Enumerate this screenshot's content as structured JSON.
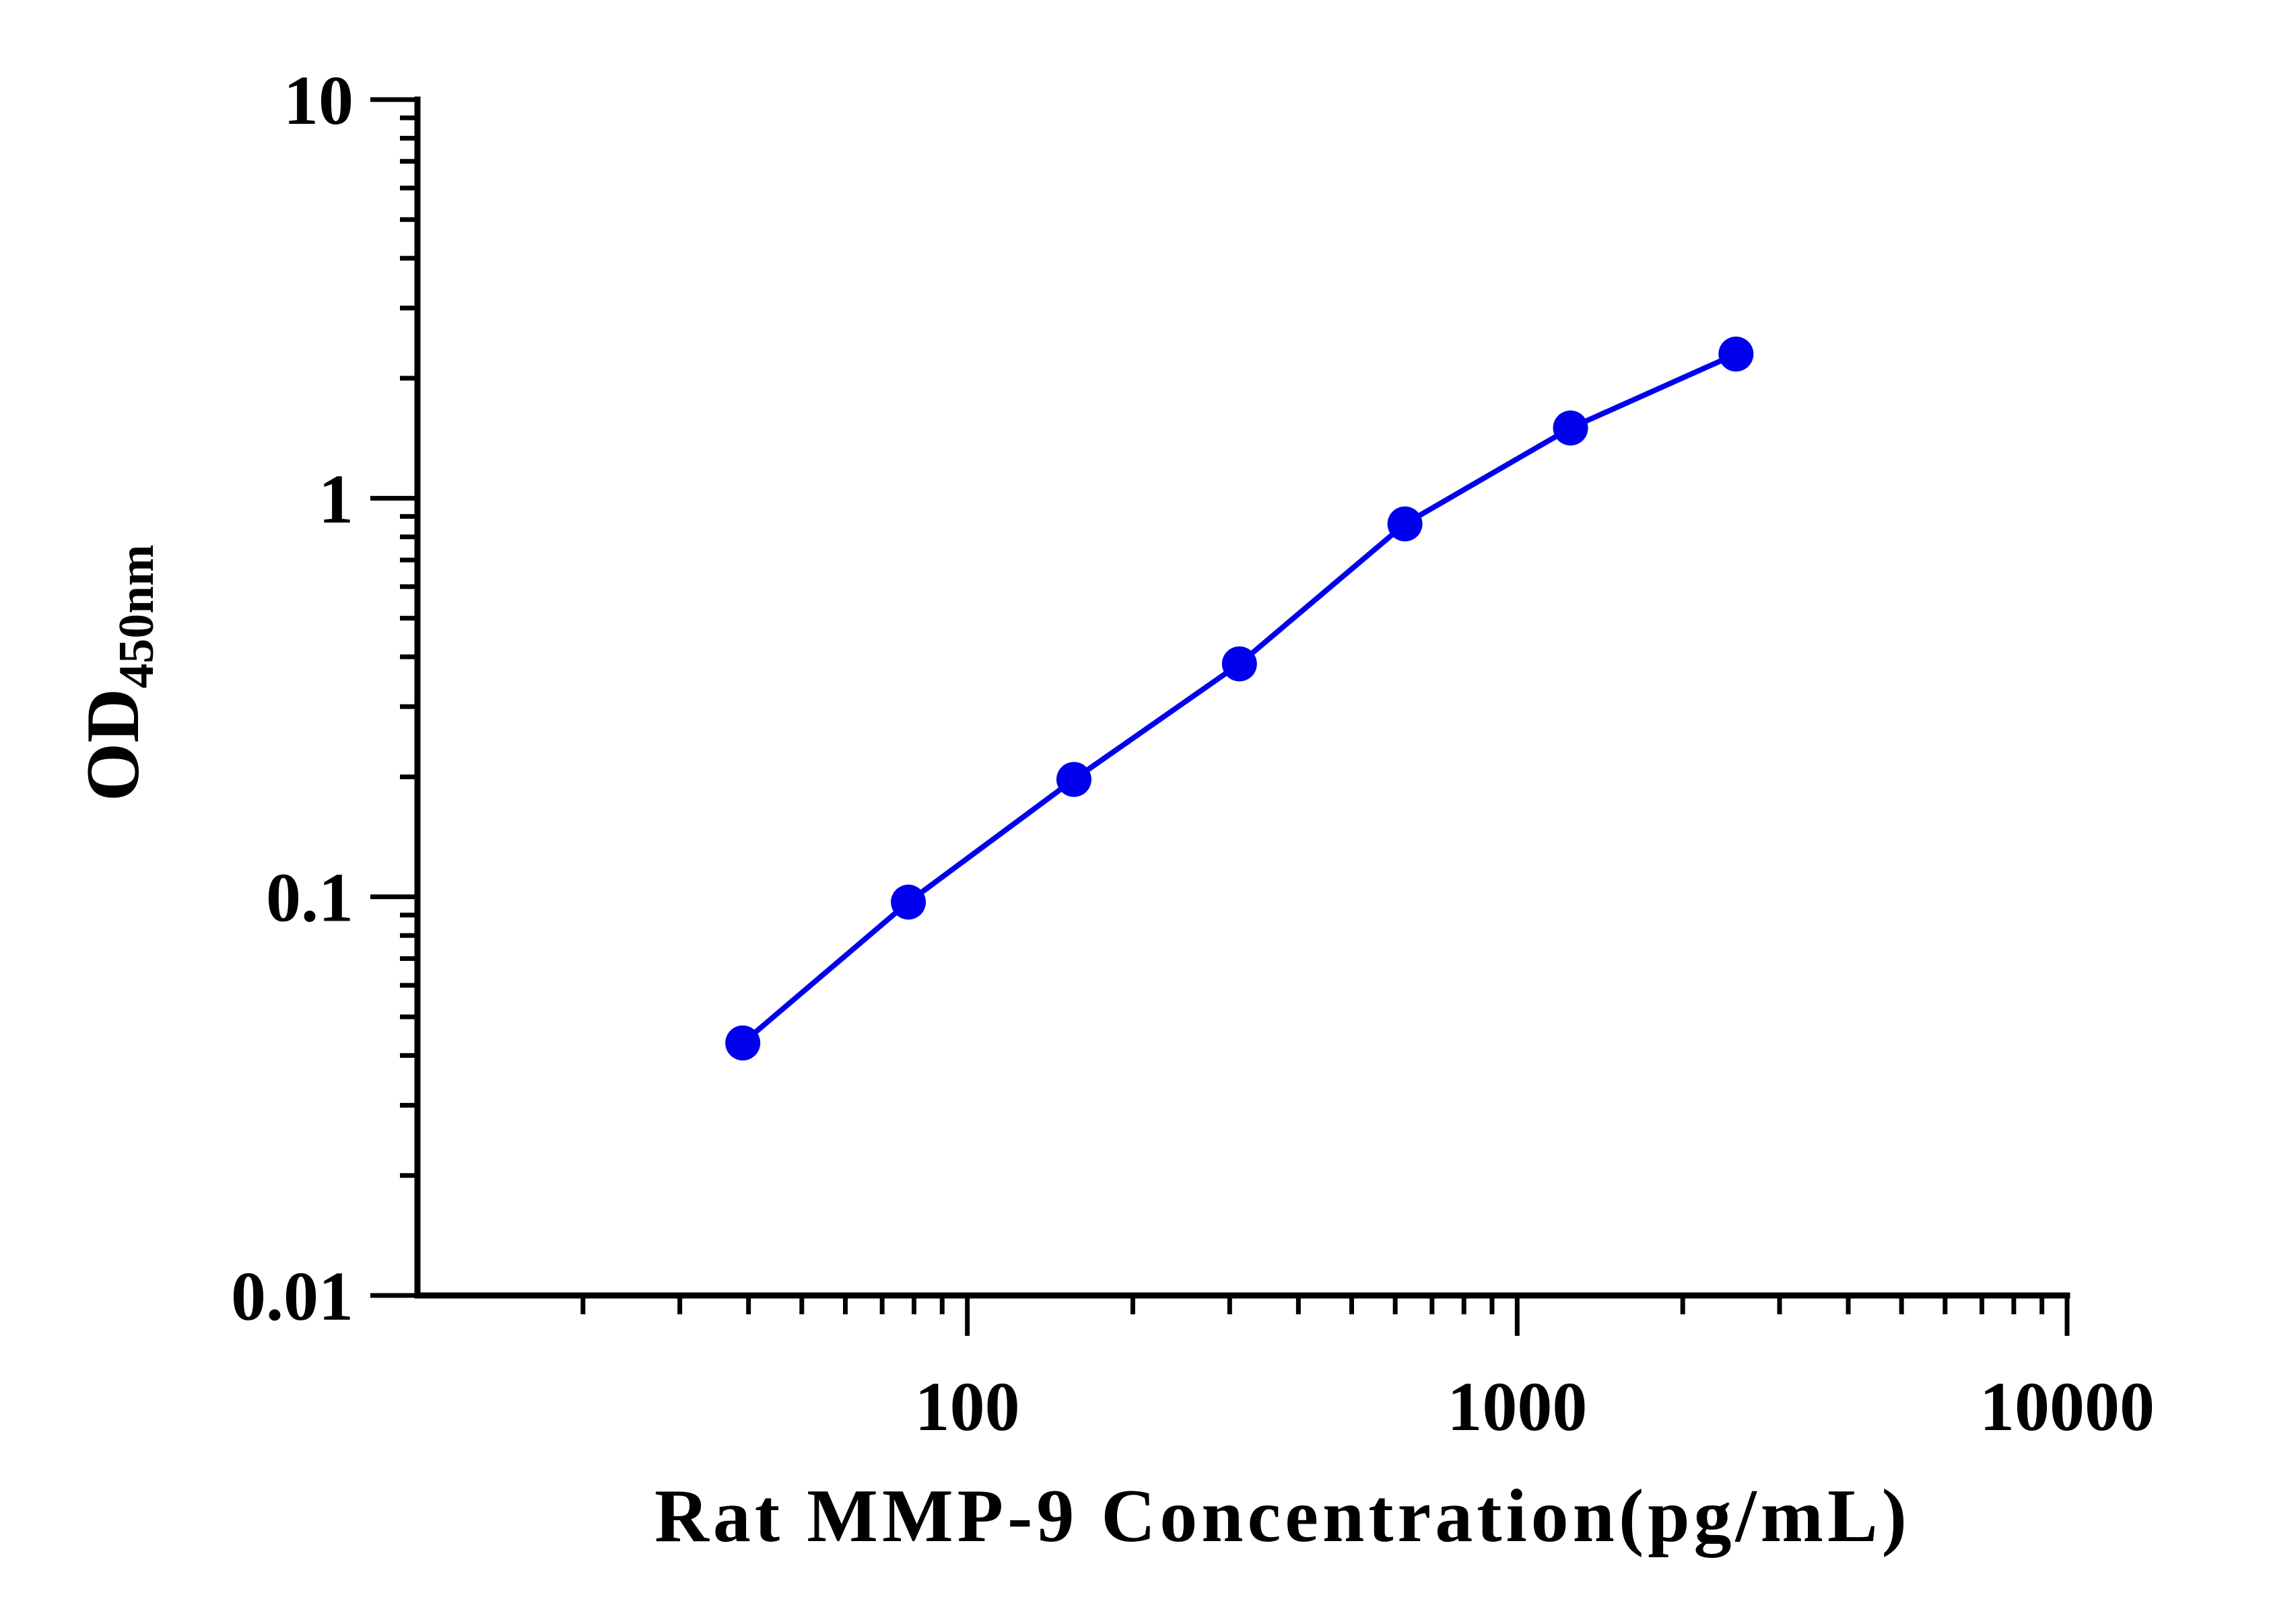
{
  "chart_data": {
    "type": "line",
    "title": "",
    "xlabel": "Rat MMP-9 Concentration(pg/mL)",
    "ylabel": {
      "main": "OD",
      "subscript": "450nm"
    },
    "x_scale": "log",
    "y_scale": "log",
    "xlim": [
      10,
      10000
    ],
    "ylim": [
      0.01,
      10
    ],
    "x_tick_labels": [
      {
        "value": 100,
        "label": "100"
      },
      {
        "value": 1000,
        "label": "1000"
      },
      {
        "value": 10000,
        "label": "10000"
      }
    ],
    "y_tick_labels": [
      {
        "value": 0.01,
        "label": "0.01"
      },
      {
        "value": 0.1,
        "label": "0.1"
      },
      {
        "value": 1,
        "label": "1"
      },
      {
        "value": 10,
        "label": "10"
      }
    ],
    "grid": false,
    "legend": "none",
    "series": [
      {
        "color": "#0000ee",
        "marker": "circle",
        "x": [
          39.06,
          78.13,
          156.25,
          312.5,
          625,
          1250,
          2500
        ],
        "y": [
          0.043,
          0.097,
          0.197,
          0.384,
          0.862,
          1.5,
          2.3
        ]
      }
    ]
  }
}
